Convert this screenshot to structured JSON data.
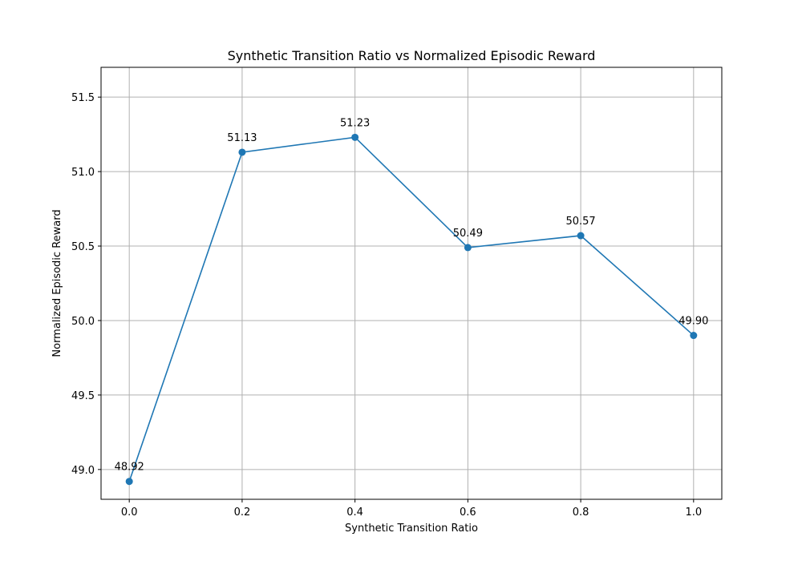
{
  "chart_data": {
    "type": "line",
    "title": "Synthetic Transition Ratio vs Normalized Episodic Reward",
    "xlabel": "Synthetic Transition Ratio",
    "ylabel": "Normalized Episodic Reward",
    "x": [
      0.0,
      0.2,
      0.4,
      0.6,
      0.8,
      1.0
    ],
    "series": [
      {
        "values": [
          48.92,
          51.13,
          51.23,
          50.49,
          50.57,
          49.9
        ],
        "color": "#1f77b4"
      }
    ],
    "data_labels": [
      "48.92",
      "51.13",
      "51.23",
      "50.49",
      "50.57",
      "49.90"
    ],
    "xlim": [
      -0.05,
      1.05
    ],
    "ylim": [
      48.8,
      51.7
    ],
    "xticks": [
      0.0,
      0.2,
      0.4,
      0.6,
      0.8,
      1.0
    ],
    "xtick_labels": [
      "0.0",
      "0.2",
      "0.4",
      "0.6",
      "0.8",
      "1.0"
    ],
    "yticks": [
      49.0,
      49.5,
      50.0,
      50.5,
      51.0,
      51.5
    ],
    "ytick_labels": [
      "49.0",
      "49.5",
      "50.0",
      "50.5",
      "51.0",
      "51.5"
    ],
    "grid": true,
    "marker": "circle"
  }
}
